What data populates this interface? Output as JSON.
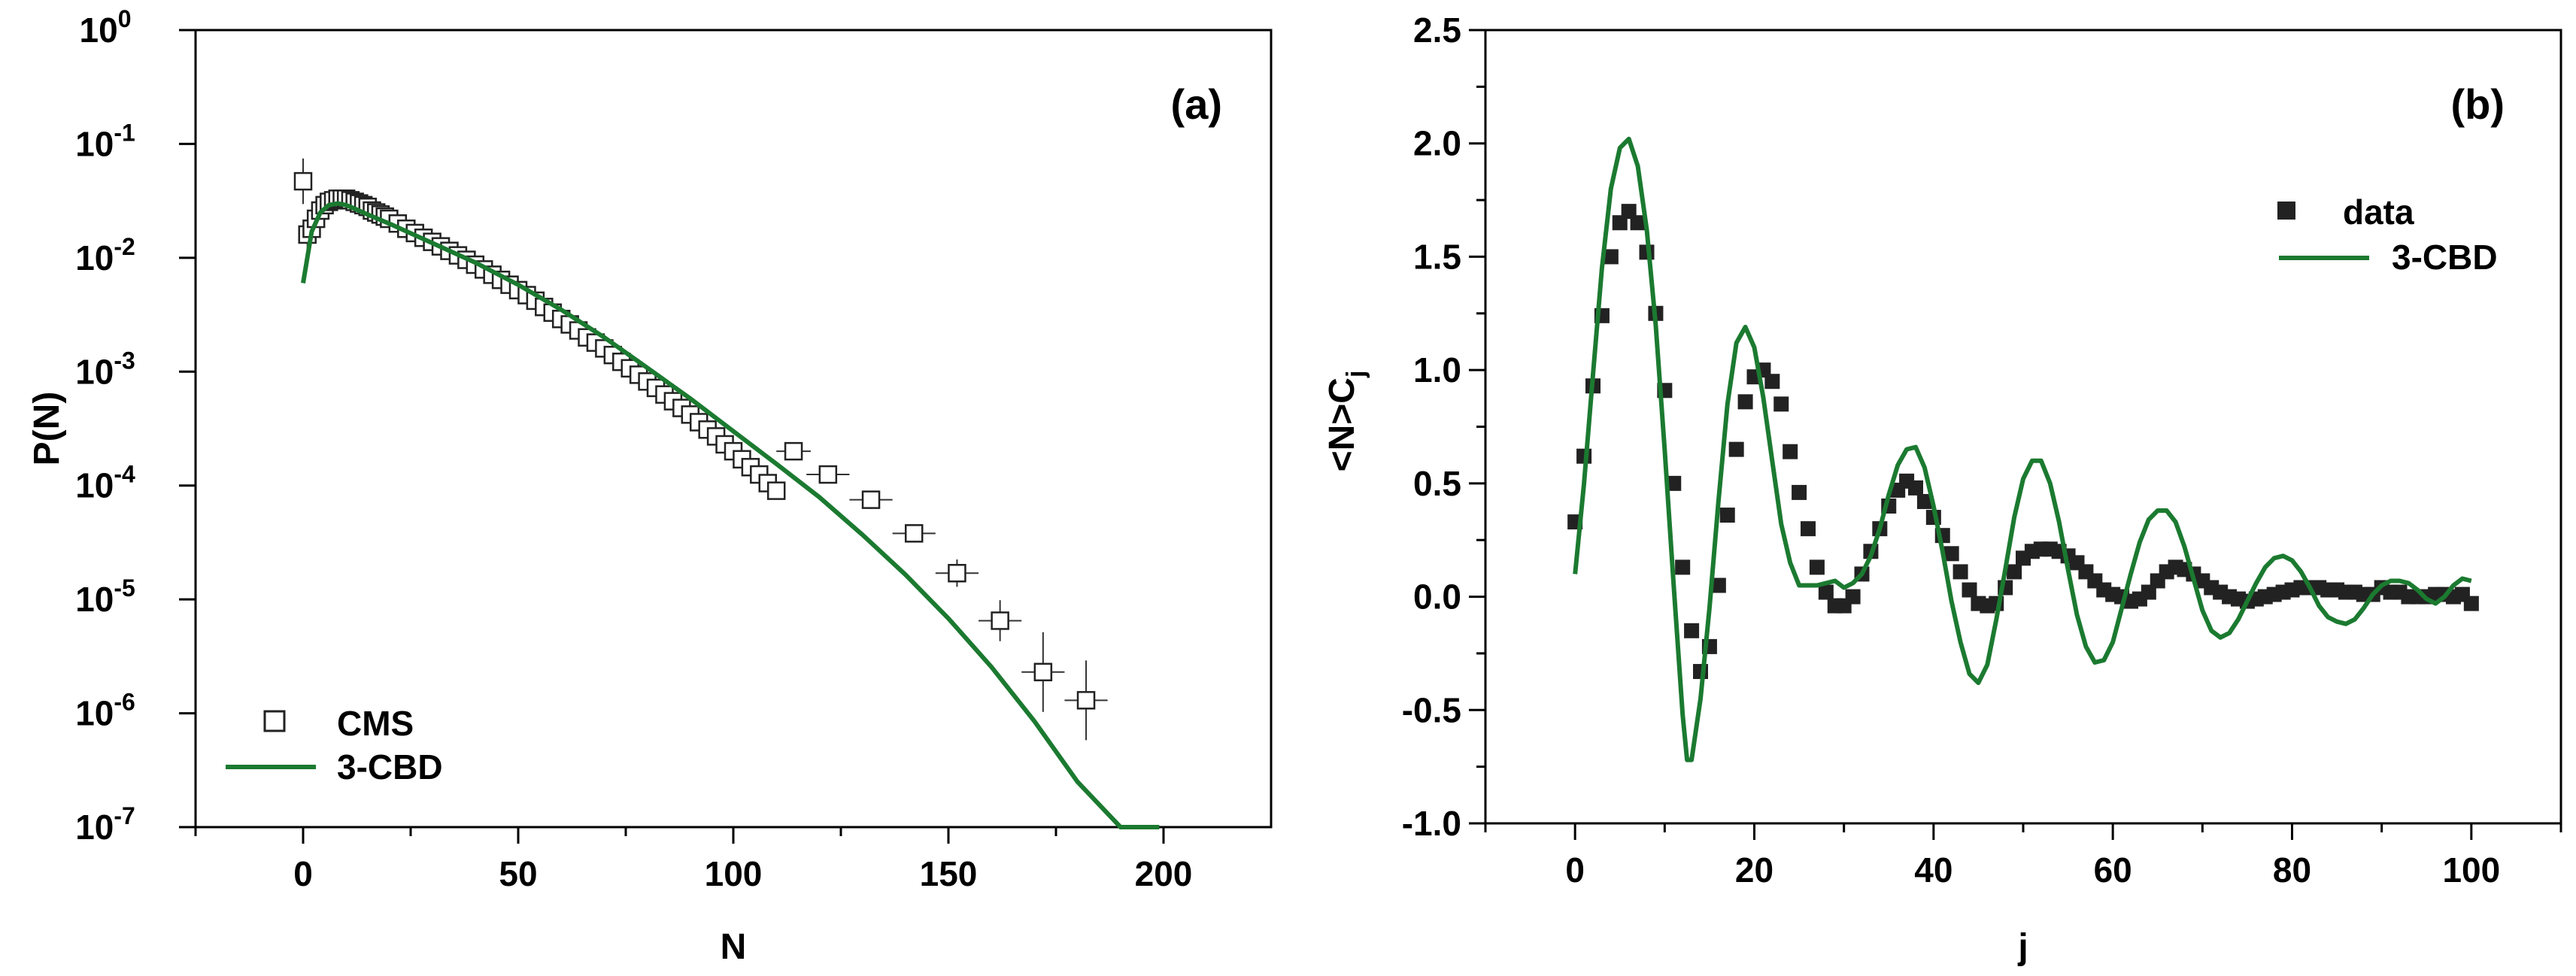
{
  "colors": {
    "axis": "#000000",
    "fit_line": "#1b7a30",
    "marker": "#222222",
    "background": "#ffffff"
  },
  "chart_data": [
    {
      "panel": "(a)",
      "type": "scatter",
      "yscale": "log",
      "xlabel": "N",
      "ylabel": "P(N)",
      "xlim": [
        -25,
        225
      ],
      "xticks": [
        "0",
        "50",
        "100",
        "150",
        "200"
      ],
      "xtick_values": [
        0,
        50,
        100,
        150,
        200
      ],
      "ytick_base": "10",
      "ytick_exponents": [
        "0",
        "-1",
        "-2",
        "-3",
        "-4",
        "-5",
        "-6",
        "-7"
      ],
      "ylim_log10": [
        -7,
        0
      ],
      "legend_position": "bottom-left",
      "series": [
        {
          "name": "CMS",
          "kind": "open-square markers with error bars",
          "x": [
            0,
            1,
            2,
            3,
            4,
            5,
            6,
            7,
            8,
            9,
            10,
            11,
            12,
            13,
            14,
            15,
            16,
            17,
            18,
            19,
            20,
            22,
            24,
            26,
            28,
            30,
            32,
            34,
            36,
            38,
            40,
            42,
            44,
            46,
            48,
            50,
            52,
            54,
            56,
            58,
            60,
            62,
            64,
            66,
            68,
            70,
            72,
            74,
            76,
            78,
            80,
            82,
            84,
            86,
            88,
            90,
            92,
            94,
            96,
            98,
            100,
            102,
            104,
            106,
            108,
            110,
            114,
            122,
            132,
            142,
            152,
            162,
            172,
            182
          ],
          "y": [
            0.047,
            0.016,
            0.018,
            0.022,
            0.026,
            0.029,
            0.031,
            0.032,
            0.033,
            0.033,
            0.033,
            0.032,
            0.031,
            0.03,
            0.029,
            0.028,
            0.026,
            0.025,
            0.024,
            0.023,
            0.022,
            0.02,
            0.018,
            0.0165,
            0.015,
            0.0138,
            0.0126,
            0.0115,
            0.0105,
            0.0096,
            0.0087,
            0.0079,
            0.0071,
            0.0064,
            0.0058,
            0.0052,
            0.0047,
            0.0042,
            0.0037,
            0.0033,
            0.0029,
            0.0026,
            0.0023,
            0.002,
            0.0018,
            0.0016,
            0.0014,
            0.00122,
            0.00107,
            0.00094,
            0.00082,
            0.00072,
            0.00063,
            0.00055,
            0.00048,
            0.00042,
            0.00036,
            0.00031,
            0.00027,
            0.00023,
            0.0002,
            0.00017,
            0.000145,
            0.000125,
            0.000105,
            9e-05,
            0.0002,
            0.000125,
            7.5e-05,
            3.8e-05,
            1.7e-05,
            6.5e-06,
            2.3e-06,
            1.3e-06
          ],
          "xerr": [
            0,
            0,
            0,
            0,
            0,
            0,
            0,
            0,
            0,
            0,
            0,
            0,
            0,
            0,
            0,
            0,
            0,
            0,
            0,
            0,
            0,
            0,
            0,
            0,
            0,
            0,
            0,
            0,
            0,
            0,
            0,
            0,
            0,
            0,
            0,
            0,
            0,
            0,
            0,
            0,
            0,
            0,
            0,
            0,
            0,
            0,
            0,
            0,
            0,
            0,
            0,
            0,
            0,
            0,
            0,
            0,
            0,
            0,
            0,
            0,
            0,
            0,
            0,
            0,
            0,
            0,
            4,
            5,
            5,
            5,
            5,
            5,
            5,
            5
          ],
          "yerr_log10": [
            0.2,
            0.12,
            0.05,
            0.03,
            0,
            0,
            0,
            0,
            0,
            0,
            0,
            0,
            0,
            0,
            0,
            0,
            0,
            0,
            0,
            0,
            0,
            0,
            0,
            0,
            0,
            0,
            0,
            0,
            0,
            0,
            0,
            0,
            0,
            0,
            0,
            0,
            0,
            0,
            0,
            0,
            0,
            0,
            0,
            0,
            0,
            0,
            0,
            0,
            0,
            0,
            0,
            0,
            0,
            0,
            0,
            0,
            0,
            0,
            0,
            0,
            0,
            0,
            0,
            0,
            0,
            0,
            0.05,
            0.06,
            0.08,
            0.08,
            0.12,
            0.18,
            0.35,
            0.35
          ]
        },
        {
          "name": "3-CBD",
          "kind": "line",
          "x": [
            0,
            2,
            4,
            6,
            8,
            10,
            12,
            15,
            20,
            30,
            40,
            50,
            60,
            70,
            80,
            90,
            100,
            110,
            120,
            130,
            140,
            150,
            160,
            170,
            180,
            190,
            199
          ],
          "y": [
            0.006,
            0.017,
            0.025,
            0.029,
            0.03,
            0.029,
            0.027,
            0.024,
            0.02,
            0.0135,
            0.0091,
            0.0058,
            0.0035,
            0.002,
            0.00108,
            0.00058,
            0.0003,
            0.000155,
            7.9e-05,
            3.7e-05,
            1.65e-05,
            6.8e-06,
            2.55e-06,
            8.5e-07,
            2.5e-07,
            1e-07,
            1e-07
          ]
        }
      ]
    },
    {
      "panel": "(b)",
      "type": "scatter",
      "xlabel": "j",
      "ylabel": "<N>C",
      "ylabel_subscript": "j",
      "xlim": [
        -10,
        110
      ],
      "ylim": [
        -1.0,
        2.5
      ],
      "xticks": [
        "0",
        "20",
        "40",
        "60",
        "80",
        "100"
      ],
      "xtick_values": [
        0,
        20,
        40,
        60,
        80,
        100
      ],
      "yticks": [
        "-1.0",
        "-0.5",
        "0.0",
        "0.5",
        "1.0",
        "1.5",
        "2.0",
        "2.5"
      ],
      "ytick_values": [
        -1.0,
        -0.5,
        0.0,
        0.5,
        1.0,
        1.5,
        2.0,
        2.5
      ],
      "legend_position": "top-right",
      "series": [
        {
          "name": "data",
          "kind": "filled-square markers",
          "x": [
            0,
            1,
            2,
            3,
            4,
            5,
            6,
            7,
            8,
            9,
            10,
            11,
            12,
            13,
            14,
            15,
            16,
            17,
            18,
            19,
            20,
            21,
            22,
            23,
            24,
            25,
            26,
            27,
            28,
            29,
            30,
            31,
            32,
            33,
            34,
            35,
            36,
            37,
            38,
            39,
            40,
            41,
            42,
            43,
            44,
            45,
            46,
            47,
            48,
            49,
            50,
            51,
            52,
            53,
            54,
            55,
            56,
            57,
            58,
            59,
            60,
            61,
            62,
            63,
            64,
            65,
            66,
            67,
            68,
            69,
            70,
            71,
            72,
            73,
            74,
            75,
            76,
            77,
            78,
            79,
            80,
            81,
            82,
            83,
            84,
            85,
            86,
            87,
            88,
            89,
            90,
            91,
            92,
            93,
            94,
            95,
            96,
            97,
            98,
            99,
            100
          ],
          "y": [
            0.33,
            0.62,
            0.93,
            1.24,
            1.5,
            1.65,
            1.7,
            1.65,
            1.52,
            1.25,
            0.91,
            0.5,
            0.13,
            -0.15,
            -0.33,
            -0.22,
            0.05,
            0.36,
            0.65,
            0.86,
            0.97,
            1.0,
            0.95,
            0.85,
            0.64,
            0.46,
            0.3,
            0.13,
            0.02,
            -0.04,
            -0.04,
            0.0,
            0.1,
            0.2,
            0.3,
            0.4,
            0.47,
            0.51,
            0.48,
            0.42,
            0.35,
            0.27,
            0.19,
            0.11,
            0.03,
            -0.03,
            -0.04,
            -0.03,
            0.04,
            0.11,
            0.17,
            0.2,
            0.21,
            0.21,
            0.2,
            0.18,
            0.15,
            0.11,
            0.07,
            0.03,
            0.01,
            0.0,
            -0.02,
            -0.01,
            0.02,
            0.07,
            0.11,
            0.13,
            0.12,
            0.1,
            0.07,
            0.04,
            0.02,
            0.0,
            -0.01,
            -0.02,
            -0.01,
            0.0,
            0.01,
            0.02,
            0.03,
            0.04,
            0.04,
            0.04,
            0.03,
            0.03,
            0.02,
            0.02,
            0.01,
            0.01,
            0.04,
            0.02,
            0.02,
            0.0,
            0.0,
            0.0,
            0.01,
            0.01,
            0.0,
            0.01,
            -0.03
          ]
        },
        {
          "name": "3-CBD",
          "kind": "line",
          "x": [
            0,
            1,
            2,
            3,
            4,
            5,
            6,
            7,
            8,
            9,
            10,
            11,
            12,
            12.5,
            13,
            14,
            15,
            16,
            17,
            18,
            19,
            20,
            21,
            22,
            23,
            24,
            25,
            26,
            27,
            28,
            29,
            30,
            31,
            32,
            33,
            34,
            35,
            36,
            37,
            38,
            39,
            40,
            41,
            42,
            43,
            44,
            45,
            46,
            47,
            48,
            49,
            50,
            51,
            52,
            53,
            54,
            55,
            56,
            57,
            58,
            59,
            60,
            61,
            62,
            63,
            64,
            65,
            66,
            67,
            68,
            69,
            70,
            71,
            72,
            73,
            74,
            75,
            76,
            77,
            78,
            79,
            80,
            81,
            82,
            83,
            84,
            85,
            86,
            87,
            88,
            89,
            90,
            91,
            92,
            93,
            94,
            95,
            96,
            97,
            98,
            99,
            100
          ],
          "y": [
            0.1,
            0.5,
            0.98,
            1.45,
            1.8,
            1.98,
            2.02,
            1.9,
            1.62,
            1.2,
            0.65,
            0.05,
            -0.52,
            -0.72,
            -0.72,
            -0.45,
            -0.05,
            0.42,
            0.85,
            1.12,
            1.19,
            1.1,
            0.88,
            0.6,
            0.32,
            0.15,
            0.05,
            0.05,
            0.05,
            0.06,
            0.07,
            0.04,
            0.06,
            0.1,
            0.18,
            0.3,
            0.45,
            0.58,
            0.65,
            0.66,
            0.57,
            0.4,
            0.2,
            -0.02,
            -0.2,
            -0.34,
            -0.38,
            -0.3,
            -0.1,
            0.12,
            0.35,
            0.52,
            0.6,
            0.6,
            0.5,
            0.33,
            0.12,
            -0.08,
            -0.22,
            -0.29,
            -0.28,
            -0.2,
            -0.05,
            0.1,
            0.24,
            0.34,
            0.38,
            0.38,
            0.33,
            0.22,
            0.08,
            -0.06,
            -0.15,
            -0.18,
            -0.16,
            -0.1,
            -0.02,
            0.06,
            0.13,
            0.17,
            0.18,
            0.16,
            0.11,
            0.04,
            -0.04,
            -0.09,
            -0.11,
            -0.12,
            -0.1,
            -0.05,
            0.01,
            0.05,
            0.07,
            0.07,
            0.06,
            0.03,
            -0.01,
            -0.03,
            0.0,
            0.05,
            0.08,
            0.07
          ]
        }
      ]
    }
  ]
}
